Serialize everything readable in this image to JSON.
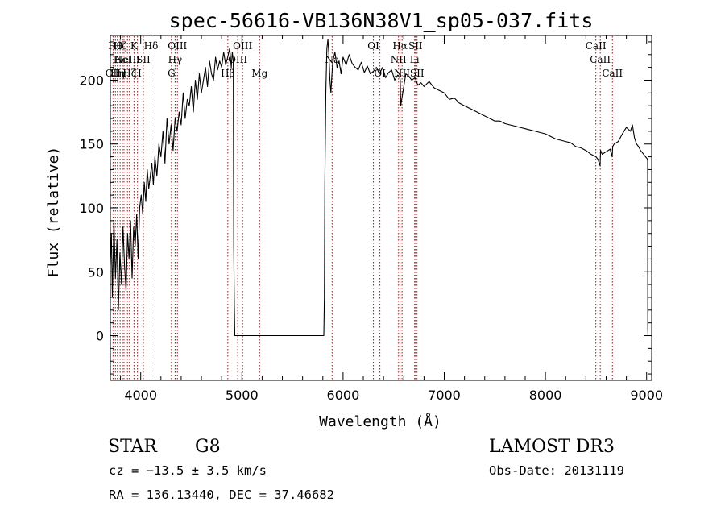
{
  "chart_data": {
    "type": "line",
    "title": "spec-56616-VB136N38V1_sp05-037.fits",
    "xlabel": "Wavelength (Å)",
    "ylabel": "Flux (relative)",
    "xlim": [
      3700,
      9050
    ],
    "ylim": [
      -35,
      235
    ],
    "x_ticks": [
      4000,
      5000,
      6000,
      7000,
      8000,
      9000
    ],
    "y_ticks": [
      0,
      50,
      100,
      150,
      200
    ],
    "x_minor_step": 200,
    "y_minor_step": 10,
    "series": [
      {
        "name": "flux",
        "x": [
          3700,
          3710,
          3720,
          3735,
          3750,
          3765,
          3780,
          3795,
          3810,
          3825,
          3840,
          3855,
          3870,
          3885,
          3900,
          3915,
          3930,
          3945,
          3960,
          3975,
          3990,
          4005,
          4020,
          4035,
          4050,
          4065,
          4080,
          4095,
          4110,
          4125,
          4140,
          4160,
          4180,
          4200,
          4220,
          4240,
          4260,
          4280,
          4300,
          4320,
          4340,
          4360,
          4380,
          4400,
          4420,
          4440,
          4460,
          4480,
          4500,
          4520,
          4540,
          4560,
          4580,
          4600,
          4620,
          4640,
          4660,
          4680,
          4700,
          4720,
          4740,
          4760,
          4780,
          4800,
          4820,
          4840,
          4860,
          4880,
          4895,
          4905,
          4915,
          4920,
          4925,
          4930,
          5500,
          5810,
          5815,
          5820,
          5830,
          5840,
          5850,
          5860,
          5870,
          5880,
          5890,
          5900,
          5920,
          5940,
          5960,
          5980,
          6000,
          6030,
          6060,
          6090,
          6120,
          6150,
          6180,
          6210,
          6240,
          6270,
          6300,
          6330,
          6360,
          6390,
          6420,
          6450,
          6480,
          6510,
          6540,
          6560,
          6565,
          6570,
          6590,
          6620,
          6650,
          6680,
          6710,
          6740,
          6770,
          6800,
          6850,
          6900,
          6950,
          7000,
          7050,
          7100,
          7150,
          7200,
          7250,
          7300,
          7350,
          7400,
          7450,
          7500,
          7550,
          7600,
          7650,
          7700,
          7750,
          7800,
          7850,
          7900,
          7950,
          8000,
          8050,
          8100,
          8150,
          8200,
          8250,
          8300,
          8350,
          8400,
          8450,
          8500,
          8520,
          8540,
          8545,
          8560,
          8600,
          8640,
          8660,
          8665,
          8680,
          8720,
          8760,
          8800,
          8840,
          8860,
          8880,
          8900,
          8920,
          8940,
          8960,
          8990,
          9010,
          9012,
          9014
        ],
        "y": [
          55,
          80,
          30,
          90,
          45,
          75,
          20,
          65,
          40,
          85,
          55,
          35,
          80,
          60,
          90,
          45,
          85,
          70,
          95,
          60,
          100,
          110,
          95,
          120,
          105,
          130,
          115,
          125,
          135,
          118,
          140,
          125,
          150,
          140,
          160,
          135,
          170,
          150,
          165,
          145,
          170,
          160,
          175,
          165,
          190,
          170,
          185,
          180,
          195,
          175,
          200,
          185,
          205,
          190,
          200,
          210,
          195,
          215,
          205,
          200,
          218,
          208,
          215,
          210,
          222,
          212,
          218,
          225,
          210,
          222,
          215,
          70,
          25,
          0,
          0,
          0,
          30,
          120,
          190,
          225,
          232,
          220,
          200,
          190,
          205,
          215,
          222,
          210,
          215,
          205,
          218,
          212,
          220,
          213,
          210,
          208,
          214,
          206,
          211,
          205,
          207,
          210,
          205,
          210,
          202,
          206,
          208,
          200,
          204,
          202,
          200,
          180,
          190,
          205,
          203,
          200,
          202,
          196,
          198,
          195,
          199,
          194,
          192,
          190,
          185,
          186,
          182,
          180,
          178,
          176,
          174,
          172,
          170,
          168,
          168,
          166,
          165,
          164,
          163,
          162,
          161,
          160,
          159,
          158,
          156,
          154,
          153,
          152,
          151,
          148,
          147,
          145,
          142,
          140,
          138,
          133,
          145,
          142,
          144,
          146,
          140,
          148,
          150,
          152,
          158,
          163,
          160,
          165,
          155,
          150,
          148,
          145,
          143,
          140,
          138,
          5,
          0
        ],
        "color": "#000000"
      }
    ],
    "lines": [
      {
        "wavelength": 3727,
        "labels": [
          {
            "text": "OII",
            "row": 2
          }
        ]
      },
      {
        "wavelength": 3750,
        "labels": [
          {
            "text": "Hθ",
            "row": 0
          }
        ]
      },
      {
        "wavelength": 3770,
        "labels": [
          {
            "text": "Hη",
            "row": 2
          }
        ]
      },
      {
        "wavelength": 3797,
        "labels": [
          {
            "text": "Hζ",
            "row": 0
          }
        ]
      },
      {
        "wavelength": 3820,
        "labels": [
          {
            "text": "HeI",
            "row": 1
          }
        ]
      },
      {
        "wavelength": 3835,
        "labels": [
          {
            "text": "η",
            "row": 2
          }
        ]
      },
      {
        "wavelength": 3869,
        "labels": [
          {
            "text": "NeIII",
            "row": 1
          }
        ]
      },
      {
        "wavelength": 3889,
        "labels": [
          {
            "text": "Hζ",
            "row": 2
          }
        ]
      },
      {
        "wavelength": 3934,
        "labels": [
          {
            "text": "K",
            "row": 0
          }
        ]
      },
      {
        "wavelength": 3968,
        "labels": [
          {
            "text": "H",
            "row": 2
          }
        ]
      },
      {
        "wavelength": 4026,
        "labels": [
          {
            "text": "SII",
            "row": 1
          }
        ]
      },
      {
        "wavelength": 4102,
        "labels": [
          {
            "text": "Hδ",
            "row": 0
          }
        ]
      },
      {
        "wavelength": 4304,
        "labels": [
          {
            "text": "G",
            "row": 2
          }
        ]
      },
      {
        "wavelength": 4340,
        "labels": [
          {
            "text": "Hγ",
            "row": 1
          }
        ]
      },
      {
        "wavelength": 4363,
        "labels": [
          {
            "text": "OIII",
            "row": 0
          }
        ]
      },
      {
        "wavelength": 4861,
        "labels": [
          {
            "text": "Hβ",
            "row": 2
          }
        ]
      },
      {
        "wavelength": 4959,
        "labels": [
          {
            "text": "OIII",
            "row": 1
          }
        ]
      },
      {
        "wavelength": 5007,
        "labels": [
          {
            "text": "OIII",
            "row": 0
          }
        ]
      },
      {
        "wavelength": 5175,
        "labels": [
          {
            "text": "Mg",
            "row": 2
          }
        ]
      },
      {
        "wavelength": 5892,
        "labels": [
          {
            "text": "Na",
            "row": 1
          }
        ]
      },
      {
        "wavelength": 6300,
        "labels": [
          {
            "text": "OI",
            "row": 0
          }
        ]
      },
      {
        "wavelength": 6364,
        "labels": [
          {
            "text": "OI",
            "row": 2
          }
        ]
      },
      {
        "wavelength": 6548,
        "labels": [
          {
            "text": "NII",
            "row": 1
          }
        ]
      },
      {
        "wavelength": 6563,
        "labels": [
          {
            "text": "Hα",
            "row": 0
          }
        ]
      },
      {
        "wavelength": 6583,
        "labels": [
          {
            "text": "NII",
            "row": 2
          }
        ]
      },
      {
        "wavelength": 6707,
        "labels": [
          {
            "text": "Li",
            "row": 1
          }
        ]
      },
      {
        "wavelength": 6716,
        "labels": [
          {
            "text": "SII",
            "row": 0
          }
        ]
      },
      {
        "wavelength": 6731,
        "labels": [
          {
            "text": "SII",
            "row": 2
          }
        ]
      },
      {
        "wavelength": 8498,
        "labels": [
          {
            "text": "CaII",
            "row": 0
          }
        ]
      },
      {
        "wavelength": 8542,
        "labels": [
          {
            "text": "CaII",
            "row": 1
          }
        ]
      },
      {
        "wavelength": 8662,
        "labels": [
          {
            "text": "CaII",
            "row": 2
          }
        ]
      }
    ]
  },
  "info": {
    "object_class": "STAR",
    "subclass": "G8",
    "survey": "LAMOST DR3",
    "cz": "cz = −13.5 ± 3.5 km/s",
    "obs_date": "Obs-Date: 20131119",
    "coords": "RA = 136.13440, DEC =  37.46682"
  },
  "colors": {
    "line_marker": "#cc0000",
    "spectrum": "#000000",
    "frame": "#000000"
  }
}
